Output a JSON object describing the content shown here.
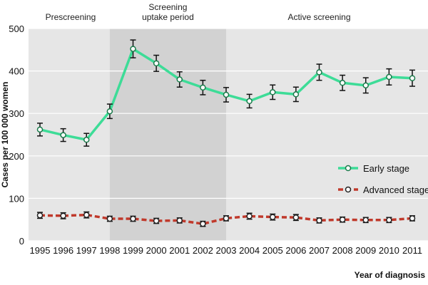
{
  "chart_data": {
    "type": "line",
    "xlabel": "Year of diagnosis",
    "ylabel": "Cases per 100 000 women",
    "ylim": [
      0,
      500
    ],
    "y_ticks": [
      0,
      100,
      200,
      300,
      400,
      500
    ],
    "grid": true,
    "legend_position": "right, lower-middle",
    "periods": [
      {
        "label": "Prescreening",
        "from": 1995,
        "to": 1998
      },
      {
        "label_lines": [
          "Screening",
          "uptake period"
        ],
        "from": 1998,
        "to": 2003
      },
      {
        "label": "Active screening",
        "from": 2003,
        "to": 2011
      }
    ],
    "x": [
      1995,
      1996,
      1997,
      1998,
      1999,
      2000,
      2001,
      2002,
      2003,
      2004,
      2005,
      2006,
      2007,
      2008,
      2009,
      2010,
      2011
    ],
    "series": [
      {
        "name": "Early stage",
        "color": "#3ddc97",
        "dashed": false,
        "values": [
          262,
          249,
          238,
          305,
          452,
          418,
          380,
          361,
          344,
          329,
          350,
          345,
          397,
          372,
          366,
          386,
          383
        ],
        "error": [
          15,
          15,
          15,
          17,
          21,
          19,
          18,
          17,
          17,
          16,
          17,
          17,
          19,
          18,
          18,
          19,
          19
        ]
      },
      {
        "name": "Advanced stage",
        "color": "#c0392b",
        "dashed": true,
        "values": [
          60,
          59,
          61,
          52,
          52,
          47,
          48,
          40,
          53,
          58,
          56,
          55,
          48,
          50,
          49,
          49,
          53
        ],
        "error": [
          7,
          7,
          7,
          6,
          6,
          6,
          6,
          6,
          6,
          7,
          7,
          7,
          6,
          6,
          6,
          6,
          6
        ]
      }
    ]
  },
  "colors": {
    "panel_bg": "#e6e6e6",
    "shaded_bg": "#d2d2d2",
    "grid": "#ffffff",
    "error_bar": "#111111"
  }
}
